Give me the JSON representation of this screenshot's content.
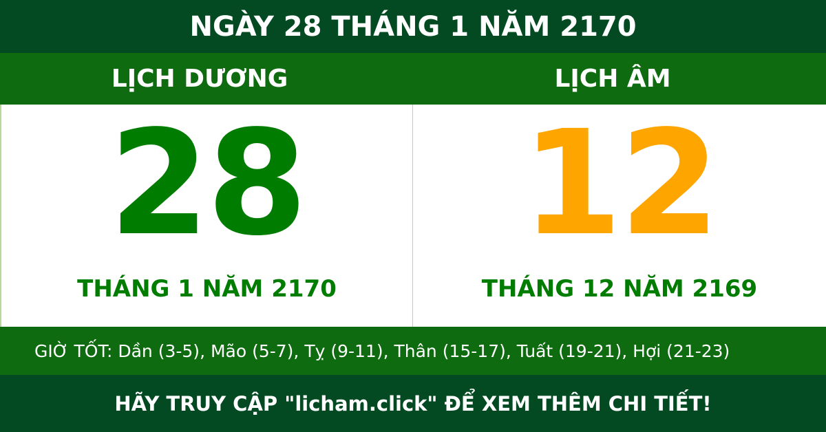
{
  "title": "NGÀY 28 THÁNG 1 NĂM 2170",
  "solar": {
    "label": "LỊCH DƯƠNG",
    "day": "28",
    "month_year": "THÁNG 1 NĂM 2170"
  },
  "lunar": {
    "label": "LỊCH ÂM",
    "day": "12",
    "month_year": "THÁNG 12 NĂM 2169"
  },
  "good_hours": "GIỜ TỐT: Dần (3-5), Mão (5-7), Tỵ (9-11), Thân (15-17), Tuất (19-21), Hợi (21-23)",
  "footer": "HÃY TRUY CẬP \"licham.click\" ĐỂ XEM THÊM CHI TIẾT!",
  "colors": {
    "dark_green": "#034a22",
    "band_green": "#0e6b10",
    "solar_day": "#007d00",
    "lunar_day": "#ffa500"
  }
}
